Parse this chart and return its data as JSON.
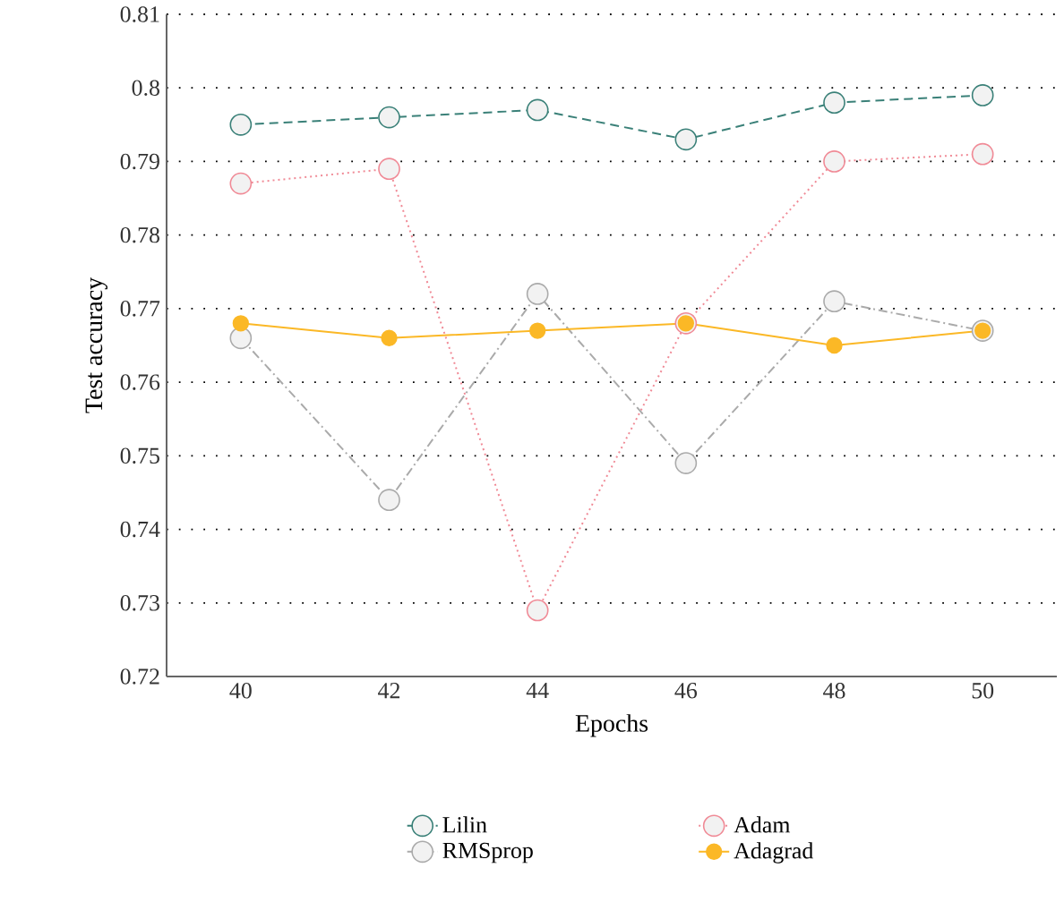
{
  "chart_data": {
    "type": "line",
    "xlabel": "Epochs",
    "ylabel": "Test accuracy",
    "x": [
      40,
      42,
      44,
      46,
      48,
      50
    ],
    "series": [
      {
        "name": "Lilin",
        "color": "#3a8078",
        "line_style": "dashed",
        "values": [
          0.795,
          0.796,
          0.797,
          0.793,
          0.798,
          0.799
        ]
      },
      {
        "name": "Adam",
        "color": "#f08a96",
        "line_style": "dotted",
        "values": [
          0.787,
          0.789,
          0.729,
          0.768,
          0.79,
          0.791
        ]
      },
      {
        "name": "RMSprop",
        "color": "#aaaaaa",
        "line_style": "dashdot",
        "values": [
          0.766,
          0.744,
          0.772,
          0.749,
          0.771,
          0.767
        ]
      },
      {
        "name": "Adagrad",
        "color": "#fbb826",
        "line_style": "solid",
        "values": [
          0.768,
          0.766,
          0.767,
          0.768,
          0.765,
          0.767
        ]
      }
    ],
    "xlim": [
      39,
      51
    ],
    "xticks": [
      40,
      42,
      44,
      46,
      48,
      50
    ],
    "ylim": [
      0.72,
      0.81
    ],
    "yticks": [
      0.72,
      0.73,
      0.74,
      0.75,
      0.76,
      0.77,
      0.78,
      0.79,
      0.8,
      0.81
    ],
    "grid": "y",
    "legend": "bottom",
    "marker": "circle"
  }
}
